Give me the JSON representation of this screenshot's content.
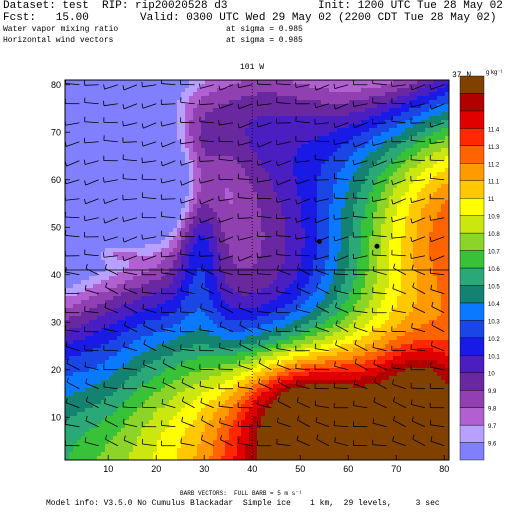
{
  "header": {
    "dataset": "Dataset: test  RIP: rip20020528 d3",
    "init": "Init: 1200 UTC Tue 28 May 02",
    "fcst": "Fcst:   15.00",
    "valid": "Valid: 0300 UTC Wed 29 May 02 (2200 CDT Tue 28 May 02)",
    "field1": "Water vapor mixing ratio",
    "field1_level": "at sigma = 0.985",
    "field2": "Horizontal wind vectors",
    "field2_level": "at sigma = 0.985"
  },
  "plot": {
    "top_label": "101 W",
    "right_label": "37 N"
  },
  "footer": {
    "barb_note": "BARB VECTORS:  FULL BARB = 5 m s⁻¹",
    "model_info": "Model info: V3.5.0 No Cumulus Blackadar  Simple ice    1 km,  29 levels,     3 sec"
  },
  "chart_data": {
    "type": "heatmap",
    "title": "Water vapor mixing ratio",
    "xlim": [
      1,
      81
    ],
    "ylim": [
      1,
      81
    ],
    "x_ticks": [
      10,
      20,
      30,
      40,
      50,
      60,
      70,
      80
    ],
    "y_ticks": [
      10,
      20,
      30,
      40,
      50,
      60,
      70,
      80
    ],
    "reference_lines": {
      "x": 40,
      "y": 41
    },
    "markers": [
      {
        "x": 54,
        "y": 47
      },
      {
        "x": 66,
        "y": 46
      }
    ],
    "colorbar": {
      "unit_label": "g kg⁻¹",
      "levels": [
        "9.6",
        "9.7",
        "9.8",
        "9.9",
        "10",
        "10.1",
        "10.2",
        "10.3",
        "10.4",
        "10.5",
        "10.6",
        "10.7",
        "10.8",
        "10.9",
        "11",
        "11.1",
        "11.2",
        "11.3",
        "11.4"
      ],
      "colors": [
        "#8080ff",
        "#b8a0ff",
        "#b060d0",
        "#9040b0",
        "#6a28a0",
        "#4a1ec0",
        "#1a1ae6",
        "#1a46e6",
        "#0a78ff",
        "#148270",
        "#2aa878",
        "#38c238",
        "#8cd428",
        "#cce610",
        "#ffff00",
        "#ffc800",
        "#ff9a00",
        "#ff6400",
        "#ff2800",
        "#e00000",
        "#b00000",
        "#804000"
      ]
    },
    "field_description": "moist (orange/red/brown) air mass to the south-east and east, dry (blue/purple) air mass to the north-west; narrow green/teal transition zone"
  }
}
